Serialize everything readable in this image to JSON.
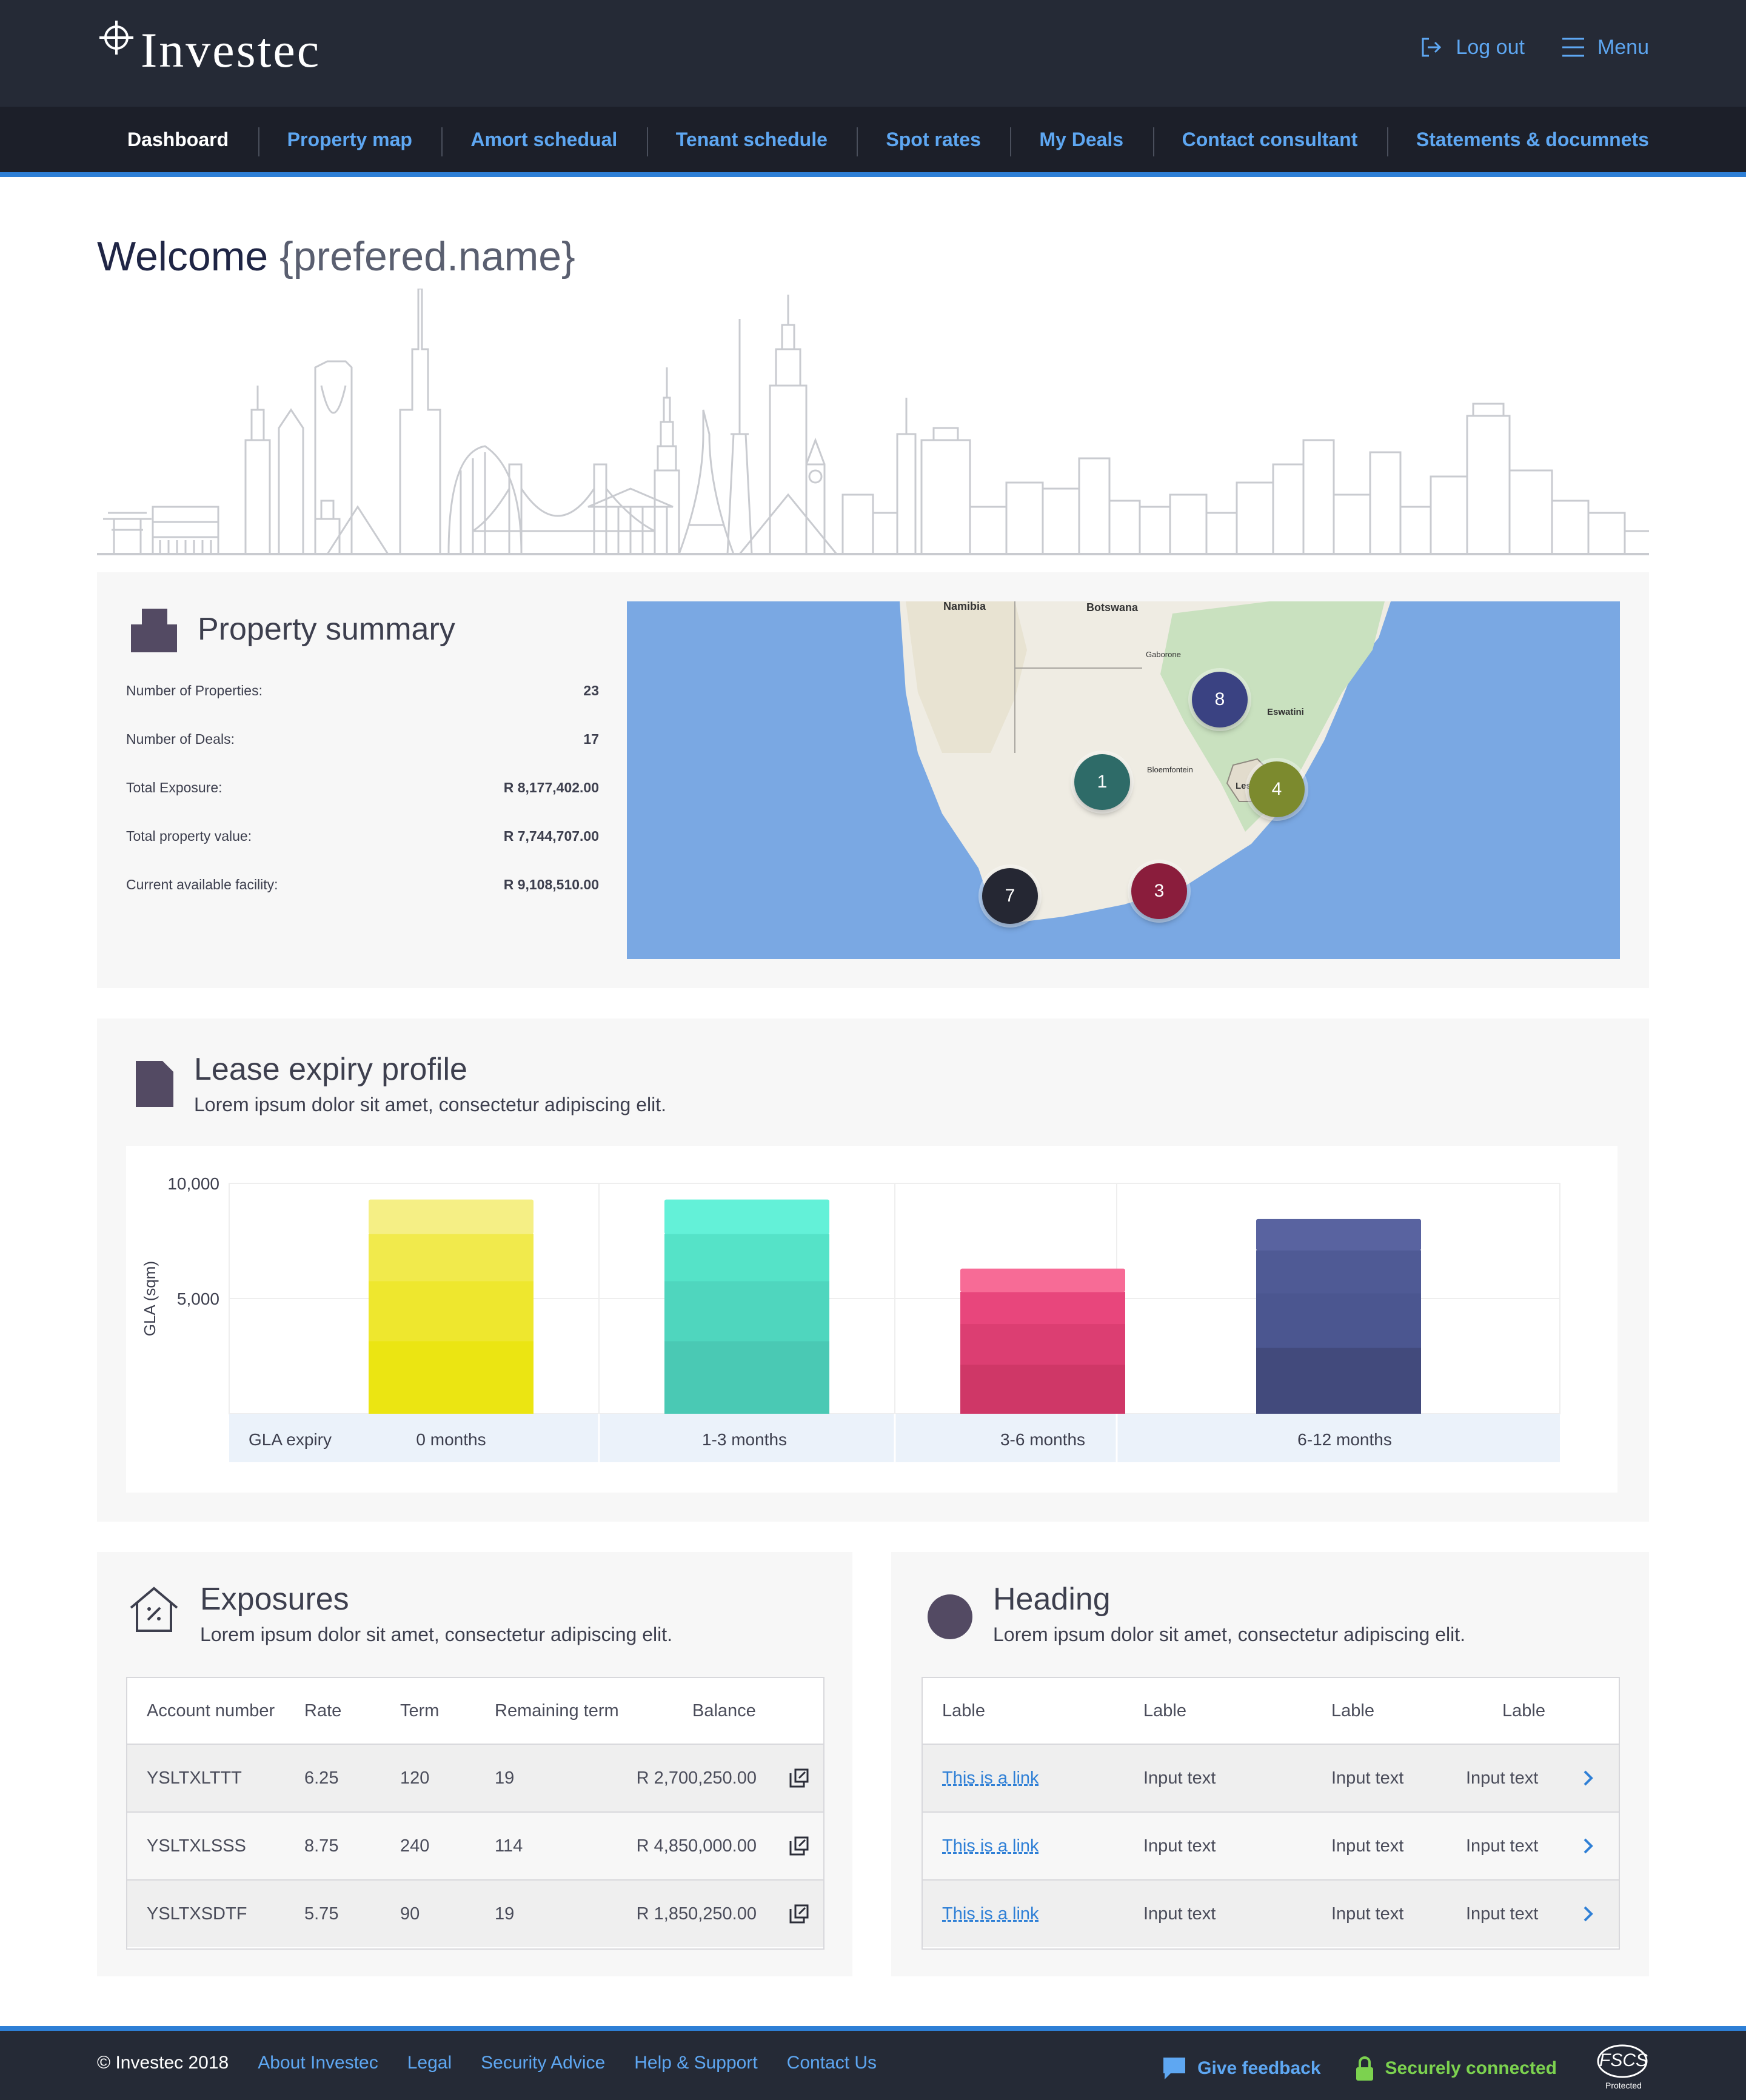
{
  "brand": {
    "name": "Investec"
  },
  "header": {
    "logout_label": "Log out",
    "menu_label": "Menu"
  },
  "nav": {
    "items": [
      {
        "label": "Dashboard"
      },
      {
        "label": "Property map"
      },
      {
        "label": "Amort schedual"
      },
      {
        "label": "Tenant schedule"
      },
      {
        "label": "Spot rates"
      },
      {
        "label": "My Deals"
      },
      {
        "label": "Contact consultant"
      },
      {
        "label": "Statements & documnets"
      }
    ]
  },
  "welcome": {
    "prefix": "Welcome",
    "placeholder": "{prefered.name}"
  },
  "property_summary": {
    "title": "Property summary",
    "rows": [
      {
        "label": "Number of Properties:",
        "value": "23"
      },
      {
        "label": "Number of Deals:",
        "value": "17"
      },
      {
        "label": "Total Exposure:",
        "value": "R 8,177,402.00"
      },
      {
        "label": "Total property value:",
        "value": "R 7,744,707.00"
      },
      {
        "label": "Current available facility:",
        "value": "R 9,108,510.00"
      }
    ],
    "map": {
      "labels": {
        "namibia": "Namibia",
        "botswana": "Botswana",
        "lesotho": "Lesotho",
        "eswatini": "Eswatini",
        "gaborone": "Gaborone",
        "bloemfontein": "Bloemfontein"
      },
      "markers": [
        {
          "label": "8",
          "color": "#3a4282"
        },
        {
          "label": "1",
          "color": "#2e6b68"
        },
        {
          "label": "4",
          "color": "#7c8a2e"
        },
        {
          "label": "7",
          "color": "#252733"
        },
        {
          "label": "3",
          "color": "#8a1d3c"
        }
      ]
    }
  },
  "lease": {
    "title": "Lease expiry profile",
    "subtitle": "Lorem ipsum dolor sit amet, consectetur adipiscing elit."
  },
  "chart_data": {
    "type": "bar",
    "ylabel": "GLA (sqm)",
    "xlabel": "GLA expiry",
    "ylim": [
      0,
      10000
    ],
    "y_ticks": [
      "10,000",
      "5,000"
    ],
    "y_tick_values": [
      10000,
      5000
    ],
    "categories": [
      "0 months",
      "1-3 months",
      "3-6 months",
      "6-12 months"
    ],
    "values": [
      9300,
      9300,
      6300,
      8450
    ],
    "colors": [
      [
        "#ebe512",
        "#eee72e",
        "#f1ea4c",
        "#f5ef85"
      ],
      [
        "#4ac9b4",
        "#4fd6be",
        "#55e3c8",
        "#63f1d8"
      ],
      [
        "#cf3767",
        "#dc3e72",
        "#e8467c",
        "#f76b96"
      ],
      [
        "#424a7c",
        "#4b5690",
        "#4f5a95",
        "#5963a0"
      ]
    ],
    "grid": true
  },
  "exposures": {
    "title": "Exposures",
    "subtitle": "Lorem ipsum dolor sit amet, consectetur adipiscing elit.",
    "columns": [
      "Account number",
      "Rate",
      "Term",
      "Remaining term",
      "Balance"
    ],
    "rows": [
      {
        "account": "YSLTXLTTT",
        "rate": "6.25",
        "term": "120",
        "remaining": "19",
        "balance": "R 2,700,250.00"
      },
      {
        "account": "YSLTXLSSS",
        "rate": "8.75",
        "term": "240",
        "remaining": "114",
        "balance": "R 4,850,000.00"
      },
      {
        "account": "YSLTXSDTF",
        "rate": "5.75",
        "term": "90",
        "remaining": "19",
        "balance": "R 1,850,250.00"
      }
    ]
  },
  "heading_panel": {
    "title": "Heading",
    "subtitle": "Lorem ipsum dolor sit amet, consectetur adipiscing elit.",
    "columns": [
      "Lable",
      "Lable",
      "Lable",
      "Lable"
    ],
    "rows": [
      {
        "link": "This is a link",
        "c2": "Input text",
        "c3": "Input text",
        "c4": "Input text"
      },
      {
        "link": "This is a link",
        "c2": "Input text",
        "c3": "Input text",
        "c4": "Input text"
      },
      {
        "link": "This is a link",
        "c2": "Input text",
        "c3": "Input text",
        "c4": "Input text"
      }
    ]
  },
  "footer": {
    "copyright": "© Investec 2018",
    "links": [
      "About Investec",
      "Legal",
      "Security Advice",
      "Help & Support",
      "Contact Us"
    ],
    "feedback_label": "Give feedback",
    "secure_label": "Securely connected",
    "fscs_label": "FSCS",
    "fscs_sub": "Protected"
  }
}
